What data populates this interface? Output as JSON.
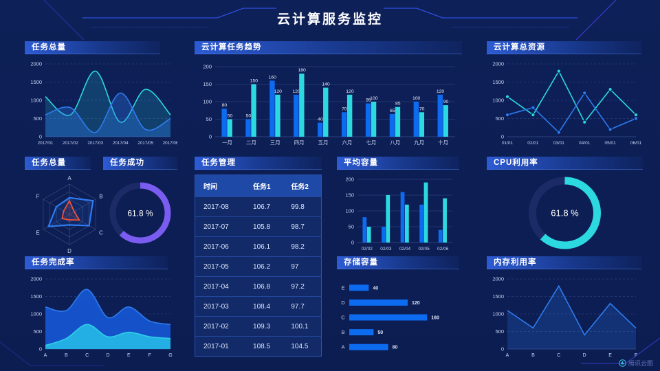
{
  "page": {
    "title": "云计算服务监控",
    "watermark": "腾讯云图"
  },
  "colors": {
    "background": "#0d2057",
    "accent_blue": "#0d6bf0",
    "accent_cyan": "#2cd9e0",
    "accent_purple": "#7b5cf0",
    "accent_red": "#f0503c",
    "grid": "#2b3e7c",
    "panel_header": "#2d5bd4",
    "table_header_bg": "#1e49a6"
  },
  "panels": {
    "task_total_top": {
      "title": "任务总量"
    },
    "trend": {
      "title": "云计算任务趋势"
    },
    "resources": {
      "title": "云计算总资源"
    },
    "radar": {
      "title": "任务总量"
    },
    "success": {
      "title": "任务成功"
    },
    "manage": {
      "title": "任务管理"
    },
    "avg_capacity": {
      "title": "平均容量"
    },
    "cpu": {
      "title": "CPU利用率"
    },
    "completion": {
      "title": "任务完成率"
    },
    "storage": {
      "title": "存储容量"
    },
    "memory": {
      "title": "内存利用率"
    }
  },
  "table": {
    "headers": [
      "时间",
      "任务1",
      "任务2"
    ],
    "rows": [
      [
        "2017-08",
        "106.7",
        "99.8"
      ],
      [
        "2017-07",
        "105.8",
        "98.7"
      ],
      [
        "2017-06",
        "106.1",
        "98.2"
      ],
      [
        "2017-05",
        "106.2",
        "97"
      ],
      [
        "2017-04",
        "106.8",
        "97.2"
      ],
      [
        "2017-03",
        "108.4",
        "97.7"
      ],
      [
        "2017-02",
        "109.3",
        "100.1"
      ],
      [
        "2017-01",
        "108.5",
        "104.5"
      ]
    ]
  },
  "chart_data": [
    {
      "id": "task-total-area",
      "type": "area",
      "title": "任务总量",
      "smooth": true,
      "x": [
        "2017/01",
        "2017/02",
        "2017/03",
        "2017/04",
        "2017/05",
        "2017/06"
      ],
      "series": [
        {
          "name": "series-cyan",
          "color": "#2cd9e0",
          "values": [
            1100,
            600,
            1800,
            400,
            1300,
            600
          ],
          "fill": 0.18
        },
        {
          "name": "series-blue",
          "color": "#2e7cf0",
          "values": [
            600,
            800,
            120,
            1200,
            200,
            500
          ],
          "fill": 0.32
        }
      ],
      "ylim": [
        0,
        2000
      ],
      "yticks": [
        0,
        500,
        1000,
        1500,
        2000
      ],
      "xfont": 6.3
    },
    {
      "id": "cloud-task-trend",
      "type": "bar",
      "title": "云计算任务趋势",
      "show_labels": true,
      "categories": [
        "一月",
        "二月",
        "三月",
        "四月",
        "五月",
        "六月",
        "七月",
        "八月",
        "九月",
        "十月"
      ],
      "series": [
        {
          "name": "任务1",
          "color": "#0d6bf0",
          "values": [
            80,
            50,
            160,
            120,
            40,
            70,
            95,
            65,
            100,
            120
          ]
        },
        {
          "name": "任务2",
          "color": "#2cd9e0",
          "values": [
            50,
            150,
            120,
            180,
            140,
            120,
            100,
            85,
            70,
            90
          ]
        }
      ],
      "ylim": [
        0,
        200
      ],
      "yticks": [
        0,
        50,
        100,
        150,
        200
      ],
      "dash": false
    },
    {
      "id": "total-resources",
      "type": "line",
      "title": "云计算总资源",
      "x": [
        "01/01",
        "02/01",
        "03/01",
        "04/01",
        "05/01",
        "06/01"
      ],
      "series": [
        {
          "name": "series-cyan",
          "color": "#2cd9e0",
          "values": [
            1100,
            600,
            1800,
            400,
            1300,
            600
          ],
          "marker": true
        },
        {
          "name": "series-blue",
          "color": "#2e7cf0",
          "values": [
            600,
            800,
            120,
            1200,
            200,
            500
          ],
          "marker": true
        }
      ],
      "ylim": [
        0,
        2000
      ],
      "yticks": [
        0,
        500,
        1000,
        1500,
        2000
      ],
      "xfont": 6.5
    },
    {
      "id": "task-total-radar",
      "type": "radar",
      "title": "任务总量",
      "indicators": [
        "A",
        "B",
        "C",
        "D",
        "E",
        "F"
      ],
      "max": 100,
      "series": [
        {
          "name": "blue",
          "color": "#2f7bf0",
          "values": [
            55,
            90,
            75,
            35,
            80,
            50
          ],
          "width": 2.2
        },
        {
          "name": "red",
          "color": "#f0503c",
          "values": [
            45,
            18,
            38,
            18,
            28,
            22
          ],
          "width": 1.8
        }
      ]
    },
    {
      "id": "task-success-gauge",
      "type": "donut",
      "title": "任务成功",
      "value": 61.8,
      "label": "61.8 %",
      "color": "#7b5cf0",
      "track": "#1c2a66",
      "pad": 14,
      "stroke_width": 9,
      "font": 12
    },
    {
      "id": "avg-capacity",
      "type": "bar",
      "title": "平均容量",
      "categories": [
        "02/02",
        "02/03",
        "02/04",
        "02/05",
        "02/06"
      ],
      "series": [
        {
          "name": "series-blue",
          "color": "#0d6bf0",
          "values": [
            80,
            50,
            160,
            120,
            40
          ]
        },
        {
          "name": "series-cyan",
          "color": "#2cd9e0",
          "values": [
            50,
            150,
            120,
            190,
            140
          ]
        }
      ],
      "ylim": [
        0,
        200
      ],
      "yticks": [
        0,
        50,
        100,
        150,
        200
      ],
      "dash": false,
      "xfont": 6.5
    },
    {
      "id": "cpu-usage-gauge",
      "type": "donut",
      "title": "CPU利用率",
      "value": 61.8,
      "label": "61.8 %",
      "color": "#2cd9e0",
      "track": "#1c2a66",
      "pad": 12,
      "stroke_width": 11,
      "font": 13
    },
    {
      "id": "completion-area",
      "type": "area",
      "title": "任务完成率",
      "smooth": true,
      "x": [
        "A",
        "B",
        "C",
        "D",
        "E",
        "F",
        "G"
      ],
      "series": [
        {
          "name": "series-blue",
          "color": "#1659d6",
          "line": "#2e7cf0",
          "values": [
            1200,
            1100,
            1700,
            900,
            1200,
            800,
            700
          ],
          "fill": 0.9
        },
        {
          "name": "series-cyan",
          "color": "#25b4e6",
          "line": "#2fd0e8",
          "values": [
            100,
            300,
            700,
            350,
            480,
            350,
            300
          ],
          "fill": 0.95
        }
      ],
      "ylim": [
        0,
        2000
      ],
      "yticks": [
        0,
        500,
        1000,
        1500,
        2000
      ]
    },
    {
      "id": "storage-capacity",
      "type": "hbar",
      "title": "存储容量",
      "categories": [
        "E",
        "D",
        "C",
        "B",
        "A"
      ],
      "values": [
        40,
        120,
        160,
        50,
        80
      ],
      "color": "#0d6bf0",
      "max": 178
    },
    {
      "id": "memory-usage",
      "type": "line",
      "title": "内存利用率",
      "x": [
        "A",
        "B",
        "C",
        "D",
        "E",
        "F"
      ],
      "series": [
        {
          "name": "series-blue",
          "color": "#2e7cf0",
          "values": [
            1100,
            600,
            1800,
            400,
            1300,
            600
          ],
          "fill": 0.22
        }
      ],
      "ylim": [
        0,
        2000
      ],
      "yticks": [
        0,
        500,
        1000,
        1500,
        2000
      ]
    }
  ]
}
